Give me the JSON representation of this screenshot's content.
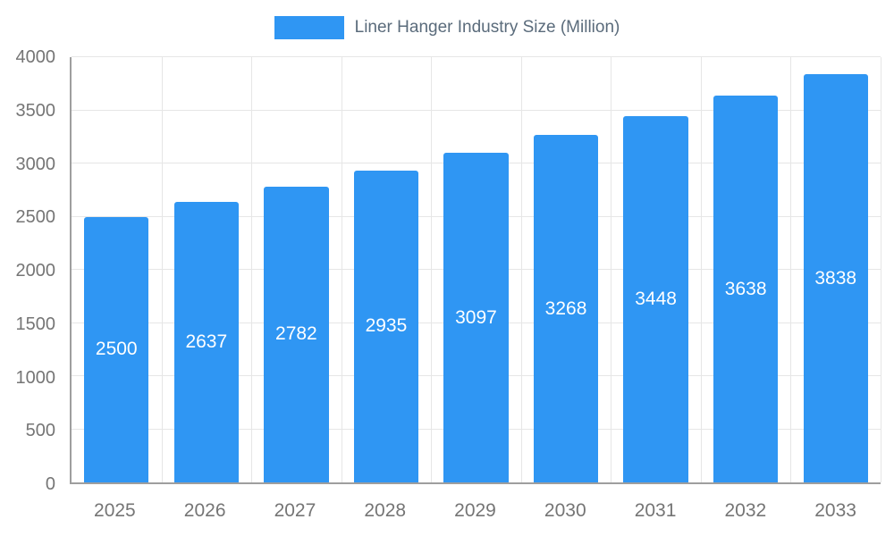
{
  "chart_data": {
    "type": "bar",
    "title": "Liner Hanger Industry Size (Million)",
    "categories": [
      "2025",
      "2026",
      "2027",
      "2028",
      "2029",
      "2030",
      "2031",
      "2032",
      "2033"
    ],
    "values": [
      2500,
      2637,
      2782,
      2935,
      3097,
      3268,
      3448,
      3638,
      3838
    ],
    "xlabel": "",
    "ylabel": "",
    "ylim": [
      0,
      4000
    ],
    "ytick_step": 500,
    "yticks": [
      0,
      500,
      1000,
      1500,
      2000,
      2500,
      3000,
      3500,
      4000
    ],
    "grid": true,
    "legend_position": "top",
    "bar_color": "#2F96F3",
    "value_label_color": "#FFFFFF",
    "colors": {
      "legend_text": "#5A6B7B",
      "tick_text": "#757575",
      "axis_line": "#9E9E9E",
      "gridline": "#E6E6E6",
      "background": "#FFFFFF"
    }
  }
}
